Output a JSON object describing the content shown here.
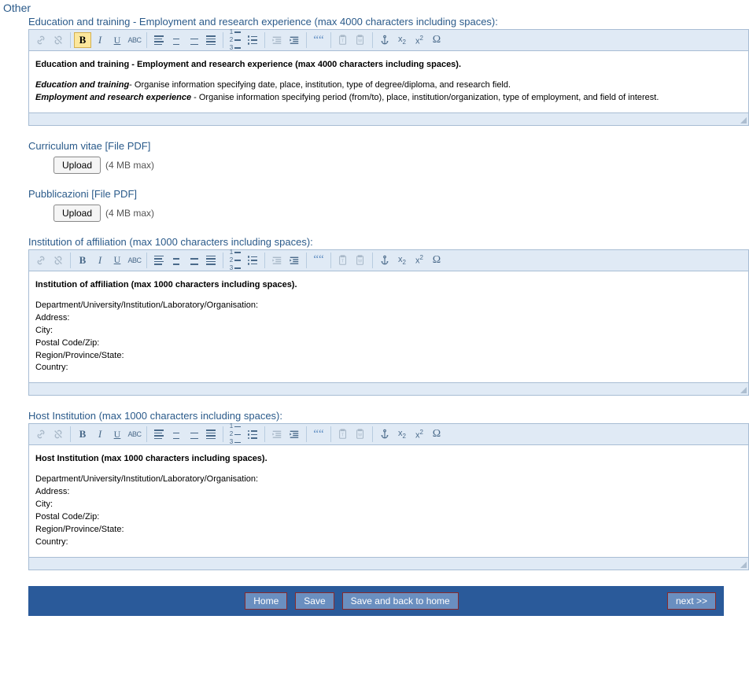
{
  "colors": {
    "heading": "#2a5a8a",
    "toolbar_bg": "#e0eaf5",
    "toolbar_border": "#a8bdd4",
    "bottom_bar_bg": "#2a5a9a",
    "button_bg": "#6a8fc0",
    "button_border": "#8a2a2a",
    "active_highlight": "#fce79c"
  },
  "toolbar_buttons": [
    {
      "id": "link",
      "label": "Link",
      "group": 0,
      "disabled": true
    },
    {
      "id": "unlink",
      "label": "Unlink",
      "group": 0,
      "disabled": true
    },
    {
      "id": "bold",
      "label": "Bold",
      "group": 1
    },
    {
      "id": "italic",
      "label": "Italic",
      "group": 1
    },
    {
      "id": "underline",
      "label": "Underline",
      "group": 1
    },
    {
      "id": "strike",
      "label": "Strikethrough",
      "group": 1
    },
    {
      "id": "align-left",
      "label": "Align left",
      "group": 2
    },
    {
      "id": "align-center",
      "label": "Align center",
      "group": 2
    },
    {
      "id": "align-right",
      "label": "Align right",
      "group": 2
    },
    {
      "id": "align-justify",
      "label": "Justify",
      "group": 2
    },
    {
      "id": "list-ol",
      "label": "Ordered list",
      "group": 3
    },
    {
      "id": "list-ul",
      "label": "Unordered list",
      "group": 3
    },
    {
      "id": "outdent",
      "label": "Outdent",
      "group": 4,
      "disabled": true
    },
    {
      "id": "indent",
      "label": "Indent",
      "group": 4
    },
    {
      "id": "blockquote",
      "label": "Block quote",
      "group": 5
    },
    {
      "id": "paste-text",
      "label": "Paste as text",
      "group": 6,
      "disabled": true
    },
    {
      "id": "paste-word",
      "label": "Paste from Word",
      "group": 6,
      "disabled": true
    },
    {
      "id": "anchor",
      "label": "Anchor",
      "group": 7
    },
    {
      "id": "subscript",
      "label": "Subscript",
      "group": 7
    },
    {
      "id": "superscript",
      "label": "Superscript",
      "group": 7
    },
    {
      "id": "specialchar",
      "label": "Special character",
      "group": 7
    }
  ],
  "page": {
    "section_title": "Other",
    "fields": {
      "edu": {
        "label": "Education and training - Employment and research experience (max 4000 characters including spaces):",
        "bold_active": true,
        "content_html": "<p><b>Education and training - Employment and research experience (max 4000 characters including spaces).</b></p><p><b><i>Education and training</i></b>- Organise information specifying date, place, institution, type of degree/diploma, and research field.<br><b><i>Employment and research experience</i></b> - Organise information specifying period (from/to), place, institution/organization, type of employment, and field of interest.</p>"
      },
      "cv": {
        "label": "Curriculum vitae [File PDF]",
        "button": "Upload",
        "hint": "(4 MB max)"
      },
      "pub": {
        "label": "Pubblicazioni [File PDF]",
        "button": "Upload",
        "hint": "(4 MB max)"
      },
      "affil": {
        "label": "Institution of affiliation (max 1000 characters including spaces):",
        "bold_active": false,
        "content_html": "<p><b>Institution of affiliation (max 1000 characters including spaces).</b></p><p>Department/University/Institution/Laboratory/Organisation:<br>Address:<br>City:<br>Postal Code/Zip:<br>Region/Province/State:<br>Country:</p>"
      },
      "host": {
        "label": "Host Institution (max 1000 characters including spaces):",
        "bold_active": false,
        "content_html": "<p><b>Host Institution (max 1000 characters including spaces).</b></p><p>Department/University/Institution/Laboratory/Organisation:<br>Address:<br>City:<br>Postal Code/Zip:<br>Region/Province/State:<br>Country:</p>"
      }
    },
    "bottom_bar": {
      "home": "Home",
      "save": "Save",
      "save_back": "Save and back to home",
      "next": "next >>"
    }
  }
}
